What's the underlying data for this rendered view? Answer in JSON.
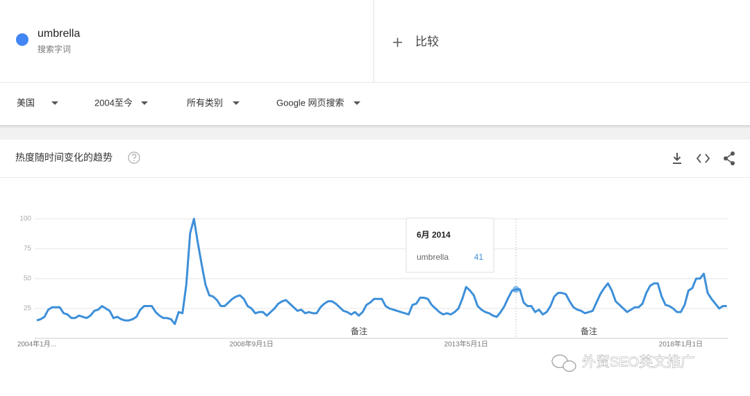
{
  "search": {
    "term_label": "搜索字词",
    "compare": "比较"
  },
  "filters": [
    "美国",
    "2004至今",
    "所有类别",
    "Google 网页搜索"
  ],
  "card": {
    "title": "热度随时间变化的趋势"
  },
  "watermark": "外贸SEO英文推广",
  "chart_data": {
    "type": "line",
    "categories": [
      "2004年1月...",
      null,
      null,
      null,
      null,
      null,
      null,
      null,
      null,
      null,
      null,
      null,
      null,
      null,
      null,
      null,
      null,
      null,
      null,
      null,
      null,
      null,
      null,
      null,
      null,
      null,
      null,
      null,
      null,
      null,
      null,
      null,
      null,
      null,
      null,
      null,
      null,
      null,
      null,
      null,
      null,
      null,
      null,
      null,
      null,
      null,
      null,
      null,
      null,
      null,
      null,
      null,
      null,
      null,
      null,
      null,
      "2008年9月1日",
      null,
      null,
      null,
      null,
      null,
      null,
      null,
      null,
      null,
      null,
      null,
      null,
      null,
      null,
      null,
      null,
      null,
      null,
      null,
      null,
      null,
      null,
      null,
      null,
      null,
      null,
      null,
      null,
      null,
      null,
      null,
      null,
      null,
      null,
      null,
      null,
      null,
      null,
      null,
      null,
      null,
      null,
      null,
      null,
      null,
      null,
      null,
      null,
      null,
      null,
      null,
      null,
      null,
      null,
      null,
      "2013年5月1日",
      null,
      null,
      null,
      null,
      null,
      null,
      null,
      null,
      null,
      null,
      null,
      null,
      null,
      null,
      null,
      null,
      null,
      null,
      null,
      null,
      null,
      null,
      null,
      null,
      null,
      null,
      null,
      null,
      null,
      null,
      null,
      null,
      null,
      null,
      null,
      null,
      null,
      null,
      null,
      null,
      null,
      null,
      null,
      null,
      null,
      null,
      null,
      null,
      null,
      null,
      null,
      null,
      null,
      null,
      null,
      "2018年1月1日",
      null,
      null,
      null,
      null,
      null,
      null,
      null,
      null,
      null,
      null,
      null,
      null
    ],
    "series": [
      {
        "name": "umbrella",
        "color": "#3d8fd9",
        "values": [
          15,
          16,
          18,
          24,
          26,
          26,
          26,
          21,
          20,
          17,
          17,
          19,
          18,
          17,
          19,
          23,
          24,
          27,
          25,
          23,
          17,
          18,
          16,
          15,
          15,
          16,
          18,
          24,
          27,
          27,
          27,
          22,
          19,
          17,
          17,
          16,
          12,
          22,
          21,
          45,
          88,
          100,
          80,
          62,
          45,
          36,
          35,
          32,
          27,
          27,
          30,
          33,
          35,
          36,
          33,
          27,
          25,
          21,
          22,
          22,
          19,
          22,
          25,
          29,
          31,
          32,
          29,
          26,
          23,
          24,
          21,
          22,
          21,
          21,
          26,
          29,
          31,
          31,
          29,
          26,
          23,
          22,
          20,
          22,
          19,
          22,
          28,
          30,
          33,
          33,
          33,
          27,
          25,
          24,
          23,
          22,
          21,
          20,
          28,
          29,
          34,
          34,
          33,
          28,
          25,
          22,
          20,
          21,
          20,
          22,
          25,
          33,
          43,
          40,
          36,
          27,
          24,
          22,
          21,
          19,
          18,
          22,
          27,
          34,
          40,
          41,
          41,
          30,
          27,
          27,
          22,
          24,
          20,
          22,
          27,
          35,
          38,
          38,
          37,
          31,
          26,
          24,
          23,
          21,
          22,
          23,
          30,
          37,
          42,
          46,
          40,
          31,
          28,
          25,
          22,
          24,
          26,
          26,
          29,
          38,
          44,
          46,
          46,
          35,
          28,
          27,
          25,
          22,
          22,
          28,
          40,
          42,
          50,
          50,
          54,
          38,
          33,
          29,
          25,
          27,
          27
        ]
      }
    ],
    "ylim": [
      0,
      100
    ],
    "yticks": [
      25,
      50,
      75,
      100
    ],
    "grid": true,
    "annotations": [
      "备注",
      "备注"
    ],
    "tooltip": {
      "title": "6月 2014",
      "value": 41
    }
  }
}
